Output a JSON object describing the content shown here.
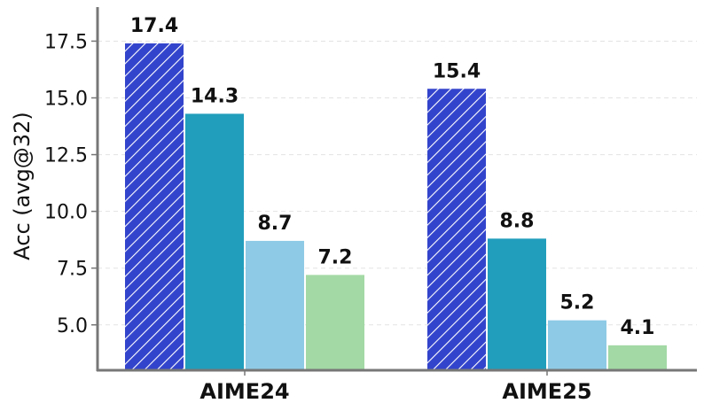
{
  "chart_data": {
    "type": "bar",
    "title": "",
    "xlabel": "",
    "ylabel": "Acc (avg@32)",
    "categories": [
      "AIME24",
      "AIME25"
    ],
    "series": [
      {
        "values": [
          17.4,
          15.4
        ],
        "color": "#3344cc",
        "pattern": "hatch"
      },
      {
        "values": [
          14.3,
          8.8
        ],
        "color": "#219ebc",
        "pattern": "solid"
      },
      {
        "values": [
          8.7,
          5.2
        ],
        "color": "#8ecae6",
        "pattern": "solid"
      },
      {
        "values": [
          7.2,
          4.1
        ],
        "color": "#a3d9a5",
        "pattern": "solid"
      }
    ],
    "ylim": [
      3.0,
      19.0
    ],
    "yticks": [
      "5.0",
      "7.5",
      "10.0",
      "12.5",
      "15.0",
      "17.5"
    ],
    "grid": "horizontal-dashed",
    "legend": "none"
  }
}
